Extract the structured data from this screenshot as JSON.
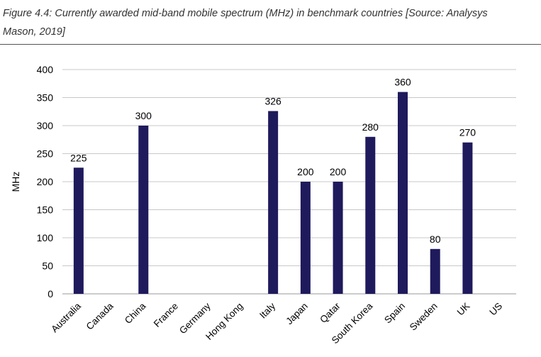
{
  "caption": {
    "line1": "Figure 4.4: Currently awarded mid-band mobile spectrum (MHz) in benchmark countries [Source: Analysys",
    "line2": "Mason, 2019]"
  },
  "chart_data": {
    "type": "bar",
    "title": "Currently awarded mid-band mobile spectrum (MHz) in benchmark countries",
    "xlabel": "",
    "ylabel": "MHz",
    "ylim": [
      0,
      400
    ],
    "yticks": [
      0,
      50,
      100,
      150,
      200,
      250,
      300,
      350,
      400
    ],
    "grid": true,
    "legend": "none",
    "bar_color": "#1f1a5c",
    "grid_color": "#c8c8c8",
    "categories": [
      "Australia",
      "Canada",
      "China",
      "France",
      "Germany",
      "Hong Kong",
      "Italy",
      "Japan",
      "Qatar",
      "South Korea",
      "Spain",
      "Sweden",
      "UK",
      "US"
    ],
    "values": [
      225,
      null,
      300,
      null,
      null,
      null,
      326,
      200,
      200,
      280,
      360,
      80,
      270,
      null
    ],
    "data_labels": [
      "225",
      "",
      "300",
      "",
      "",
      "",
      "326",
      "200",
      "200",
      "280",
      "360",
      "80",
      "270",
      ""
    ]
  }
}
